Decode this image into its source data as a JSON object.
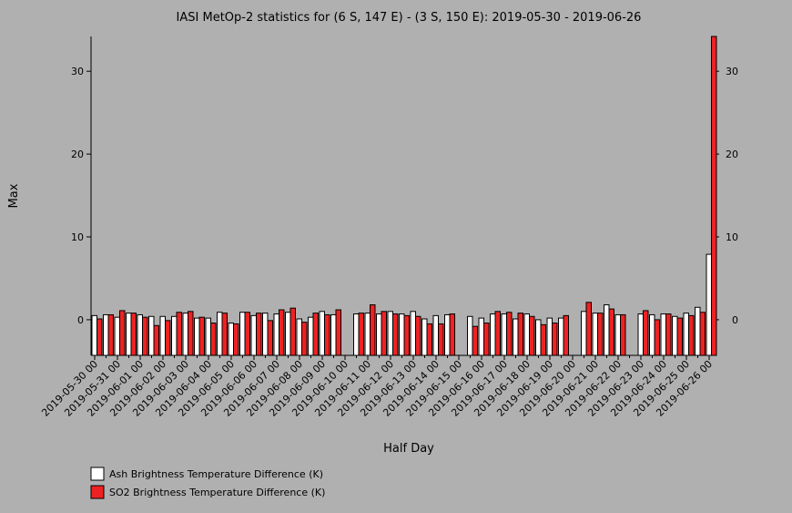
{
  "chart_data": {
    "type": "bar",
    "title": "IASI MetOp-2 statistics for (6 S, 147 E) - (3 S, 150 E): 2019-05-30 - 2019-06-26",
    "x_label": "Half Day",
    "y_label": "Max",
    "categories": [
      "2019-05-30 00",
      null,
      "2019-05-31 00",
      null,
      "2019-06-01 00",
      null,
      "2019-06-02 00",
      null,
      "2019-06-03 00",
      null,
      "2019-06-04 00",
      null,
      "2019-06-05 00",
      null,
      "2019-06-06 00",
      null,
      "2019-06-07 00",
      null,
      "2019-06-08 00",
      null,
      "2019-06-09 00",
      null,
      "2019-06-10 00",
      null,
      "2019-06-11 00",
      null,
      "2019-06-12 00",
      null,
      "2019-06-13 00",
      null,
      "2019-06-14 00",
      null,
      "2019-06-15 00",
      null,
      "2019-06-16 00",
      null,
      "2019-06-17 00",
      null,
      "2019-06-18 00",
      null,
      "2019-06-19 00",
      null,
      "2019-06-20 00",
      null,
      "2019-06-21 00",
      null,
      "2019-06-22 00",
      null,
      "2019-06-23 00",
      null,
      "2019-06-24 00",
      null,
      "2019-06-25 00",
      null,
      "2019-06-26 00"
    ],
    "series": [
      {
        "name": "Ash Brightness Temperature Difference (K)",
        "color": "#ffffff",
        "values": [
          0.5,
          0.6,
          0.3,
          0.8,
          0.6,
          0.4,
          0.4,
          0.4,
          0.8,
          0.2,
          0.2,
          0.9,
          -0.4,
          0.9,
          0.5,
          0.8,
          0.7,
          0.9,
          0.1,
          0.3,
          1.0,
          0.6,
          null,
          0.7,
          0.8,
          0.7,
          1.0,
          0.7,
          1.0,
          0.1,
          0.5,
          0.6,
          null,
          0.4,
          0.2,
          0.7,
          0.7,
          0.1,
          0.7,
          0.0,
          0.2,
          0.2,
          null,
          1.0,
          0.8,
          1.8,
          0.6,
          null,
          0.7,
          0.6,
          0.7,
          0.4,
          0.8,
          1.5,
          7.9
        ]
      },
      {
        "name": "SO2 Brightness Temperature Difference (K)",
        "color": "#ee2222",
        "values": [
          0.1,
          0.6,
          1.1,
          0.8,
          0.3,
          -0.7,
          -0.1,
          0.9,
          1.0,
          0.3,
          -0.4,
          0.8,
          -0.5,
          0.9,
          0.8,
          -0.1,
          1.2,
          1.4,
          -0.3,
          0.8,
          0.6,
          1.2,
          null,
          0.8,
          1.8,
          1.0,
          0.7,
          0.5,
          0.4,
          -0.5,
          -0.5,
          0.7,
          null,
          -0.8,
          -0.4,
          1.0,
          0.9,
          0.8,
          0.4,
          -0.6,
          -0.4,
          0.5,
          null,
          2.1,
          0.8,
          1.3,
          0.6,
          null,
          1.1,
          0.0,
          0.7,
          0.2,
          0.5,
          0.9,
          34.2
        ]
      }
    ],
    "ylim": [
      -4.3,
      34.2
    ],
    "yticks": [
      0,
      10,
      20,
      30
    ]
  }
}
